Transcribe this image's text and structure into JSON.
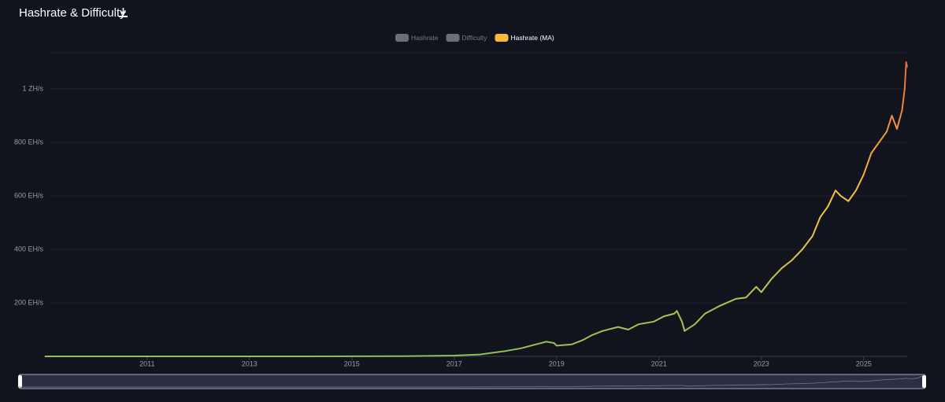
{
  "chart_data": {
    "type": "line",
    "title": "Hashrate & Difficulty",
    "hidden_series": [
      {
        "name": "Hashrate",
        "color": "#6e6f73"
      },
      {
        "name": "Difficulty",
        "color": "#6e6f73"
      }
    ],
    "x": [
      2009.0,
      2013.0,
      2014.0,
      2015.0,
      2016.0,
      2017.0,
      2017.5,
      2018.0,
      2018.3,
      2018.6,
      2018.8,
      2018.95,
      2019.0,
      2019.3,
      2019.5,
      2019.7,
      2019.9,
      2020.2,
      2020.4,
      2020.6,
      2020.9,
      2021.1,
      2021.3,
      2021.35,
      2021.45,
      2021.5,
      2021.7,
      2021.9,
      2022.2,
      2022.5,
      2022.7,
      2022.9,
      2023.0,
      2023.2,
      2023.4,
      2023.6,
      2023.8,
      2024.0,
      2024.15,
      2024.3,
      2024.45,
      2024.55,
      2024.7,
      2024.85,
      2025.0,
      2025.15,
      2025.3,
      2025.45,
      2025.55,
      2025.65,
      2025.75,
      2025.8,
      2025.83,
      2025.85
    ],
    "series": [
      {
        "name": "Hashrate (MA)",
        "color": "#f6b93b",
        "gradient": [
          "#8fbf5a",
          "#f7c542",
          "#e9633a"
        ],
        "values": [
          0,
          0,
          0.1,
          0.3,
          1,
          3,
          7,
          20,
          30,
          45,
          55,
          50,
          40,
          45,
          60,
          80,
          95,
          110,
          100,
          120,
          130,
          150,
          160,
          170,
          130,
          95,
          120,
          160,
          190,
          215,
          220,
          260,
          240,
          290,
          330,
          360,
          400,
          450,
          520,
          560,
          620,
          600,
          580,
          620,
          680,
          760,
          800,
          840,
          900,
          850,
          920,
          1000,
          1100,
          1080
        ]
      }
    ],
    "xlim": [
      2009.08,
      2025.85
    ],
    "xticks": [
      2011,
      2013,
      2015,
      2017,
      2019,
      2021,
      2023,
      2025
    ],
    "ylim": [
      0,
      1135
    ],
    "yticks": [
      {
        "value": 200,
        "label": "200 EH/s"
      },
      {
        "value": 400,
        "label": "400 EH/s"
      },
      {
        "value": 600,
        "label": "600 EH/s"
      },
      {
        "value": 800,
        "label": "800 EH/s"
      },
      {
        "value": 1000,
        "label": "1 ZH/s"
      }
    ],
    "grid": true
  }
}
